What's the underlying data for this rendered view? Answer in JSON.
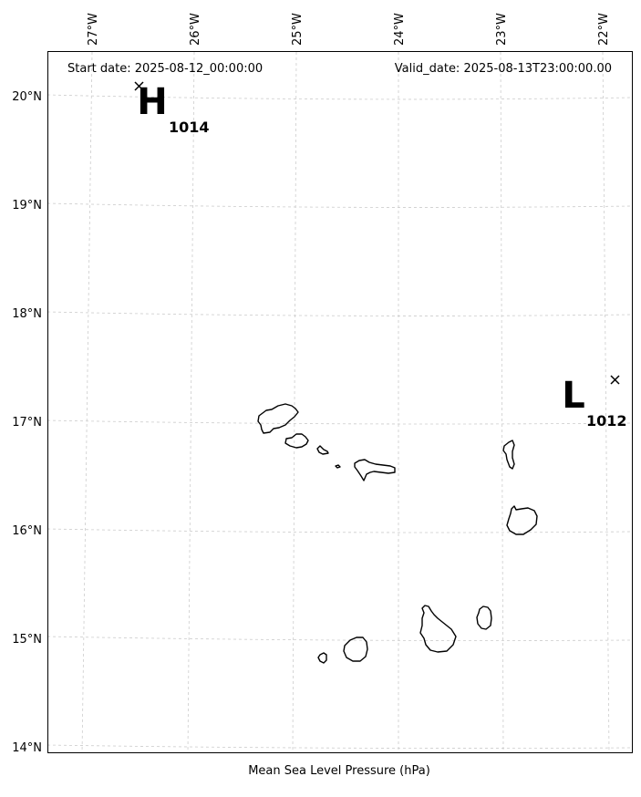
{
  "header": {
    "start_date": "Start date: 2025-08-12_00:00:00",
    "valid_date": "Valid_date: 2025-08-13T23:00:00.00"
  },
  "footer": {
    "caption": "Mean Sea Level Pressure (hPa)"
  },
  "axes": {
    "longitude_labels": [
      "27°W",
      "26°W",
      "25°W",
      "24°W",
      "23°W",
      "22°W"
    ],
    "latitude_labels": [
      "20°N",
      "19°N",
      "18°N",
      "17°N",
      "16°N",
      "15°N",
      "14°N"
    ],
    "gridlines": true
  },
  "pressure_centers": [
    {
      "type": "H",
      "value": "1014"
    },
    {
      "type": "L",
      "value": "1012"
    }
  ],
  "colors": {
    "coastline": "#000000",
    "grid": "#cccccc",
    "frame": "#000000"
  }
}
